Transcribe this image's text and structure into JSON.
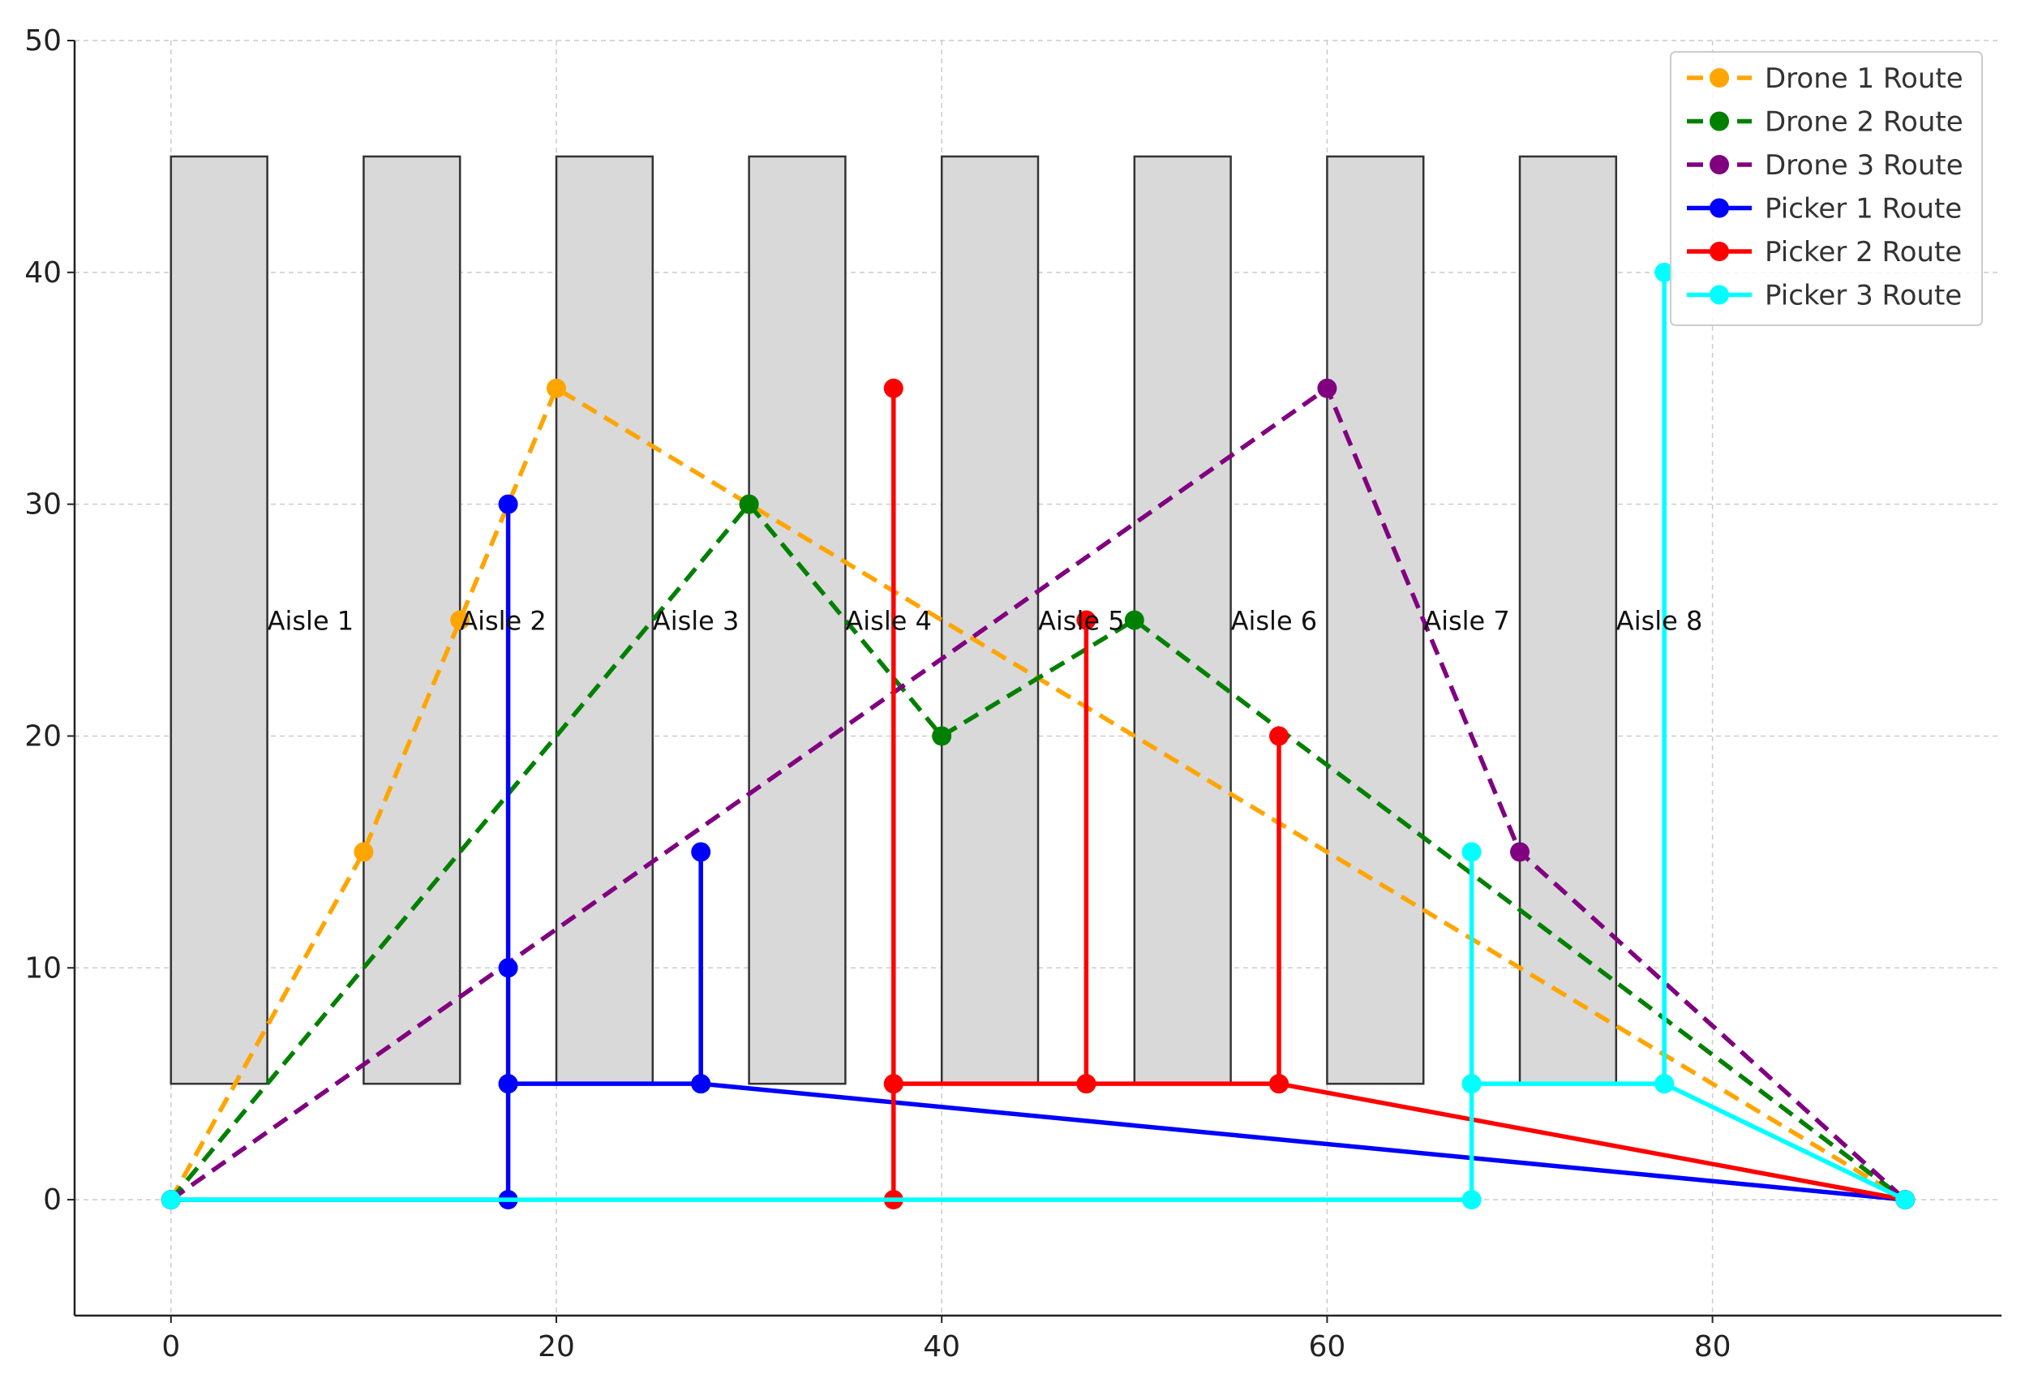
{
  "chart_data": {
    "type": "line",
    "xlim": [
      -5,
      95
    ],
    "ylim": [
      -5,
      50
    ],
    "x_ticks": [
      0,
      20,
      40,
      60,
      80
    ],
    "y_ticks": [
      0,
      10,
      20,
      30,
      40,
      50
    ],
    "grid": true,
    "legend_position": "top-right",
    "aisles": [
      {
        "label": "Aisle 1",
        "x0": 0,
        "x1": 5,
        "y0": 5,
        "y1": 45
      },
      {
        "label": "Aisle 2",
        "x0": 10,
        "x1": 15,
        "y0": 5,
        "y1": 45
      },
      {
        "label": "Aisle 3",
        "x0": 20,
        "x1": 25,
        "y0": 5,
        "y1": 45
      },
      {
        "label": "Aisle 4",
        "x0": 30,
        "x1": 35,
        "y0": 5,
        "y1": 45
      },
      {
        "label": "Aisle 5",
        "x0": 40,
        "x1": 45,
        "y0": 5,
        "y1": 45
      },
      {
        "label": "Aisle 6",
        "x0": 50,
        "x1": 55,
        "y0": 5,
        "y1": 45
      },
      {
        "label": "Aisle 7",
        "x0": 60,
        "x1": 65,
        "y0": 5,
        "y1": 45
      },
      {
        "label": "Aisle 8",
        "x0": 70,
        "x1": 75,
        "y0": 5,
        "y1": 45
      }
    ],
    "aisle_label_y": 25,
    "series": [
      {
        "name": "Drone 1 Route",
        "color": "#FFA500",
        "style": "dashed",
        "points": [
          [
            0,
            0
          ],
          [
            10,
            15
          ],
          [
            15,
            25
          ],
          [
            20,
            35
          ],
          [
            30,
            30
          ],
          [
            90,
            0
          ]
        ]
      },
      {
        "name": "Drone 2 Route",
        "color": "#008000",
        "style": "dashed",
        "points": [
          [
            0,
            0
          ],
          [
            30,
            30
          ],
          [
            40,
            20
          ],
          [
            50,
            25
          ],
          [
            90,
            0
          ]
        ]
      },
      {
        "name": "Drone 3 Route",
        "color": "#800080",
        "style": "dashed",
        "points": [
          [
            0,
            0
          ],
          [
            60,
            35
          ],
          [
            70,
            15
          ],
          [
            90,
            0
          ]
        ]
      },
      {
        "name": "Picker 1 Route",
        "color": "#0000FF",
        "style": "solid",
        "points": [
          [
            0,
            0
          ],
          [
            17.5,
            0
          ],
          [
            17.5,
            5
          ],
          [
            17.5,
            10
          ],
          [
            17.5,
            30
          ],
          [
            17.5,
            5
          ],
          [
            27.5,
            5
          ],
          [
            27.5,
            15
          ],
          [
            27.5,
            5
          ],
          [
            90,
            0
          ]
        ]
      },
      {
        "name": "Picker 2 Route",
        "color": "#FF0000",
        "style": "solid",
        "points": [
          [
            37.5,
            0
          ],
          [
            37.5,
            5
          ],
          [
            37.5,
            35
          ],
          [
            37.5,
            5
          ],
          [
            47.5,
            5
          ],
          [
            47.5,
            25
          ],
          [
            47.5,
            5
          ],
          [
            57.5,
            5
          ],
          [
            57.5,
            20
          ],
          [
            57.5,
            5
          ],
          [
            90,
            0
          ]
        ]
      },
      {
        "name": "Picker 3 Route",
        "color": "#00FFFF",
        "style": "solid",
        "points": [
          [
            0,
            0
          ],
          [
            67.5,
            0
          ],
          [
            67.5,
            5
          ],
          [
            67.5,
            15
          ],
          [
            67.5,
            5
          ],
          [
            77.5,
            5
          ],
          [
            77.5,
            40
          ],
          [
            77.5,
            5
          ],
          [
            90,
            0
          ]
        ]
      }
    ]
  }
}
